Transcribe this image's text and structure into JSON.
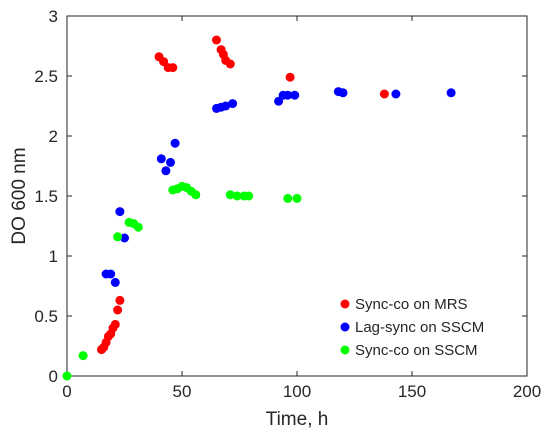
{
  "chart_data": {
    "type": "scatter",
    "xlabel": "Time, h",
    "ylabel": "DO 600 nm",
    "xlim": [
      0,
      200
    ],
    "ylim": [
      0,
      3
    ],
    "xticks": [
      0,
      50,
      100,
      150,
      200
    ],
    "yticks": [
      0,
      0.5,
      1,
      1.5,
      2,
      2.5,
      3
    ],
    "xtick_labels": [
      "0",
      "50",
      "100",
      "150",
      "200"
    ],
    "ytick_labels": [
      "0",
      "0.5",
      "1",
      "1.5",
      "2",
      "2.5",
      "3"
    ],
    "grid": false,
    "legend_position": "bottom-right",
    "series": [
      {
        "name": "Sync-co on MRS",
        "color": "#ff0000",
        "points": [
          [
            15,
            0.22
          ],
          [
            16,
            0.24
          ],
          [
            17,
            0.28
          ],
          [
            18,
            0.33
          ],
          [
            19,
            0.35
          ],
          [
            20,
            0.4
          ],
          [
            21,
            0.43
          ],
          [
            22,
            0.55
          ],
          [
            23,
            0.63
          ],
          [
            40,
            2.66
          ],
          [
            42,
            2.62
          ],
          [
            44,
            2.57
          ],
          [
            46,
            2.57
          ],
          [
            65,
            2.8
          ],
          [
            67,
            2.72
          ],
          [
            68,
            2.68
          ],
          [
            69,
            2.63
          ],
          [
            71,
            2.6
          ],
          [
            97,
            2.49
          ],
          [
            138,
            2.35
          ]
        ]
      },
      {
        "name": "Lag-sync on SSCM",
        "color": "#0000ff",
        "points": [
          [
            17,
            0.85
          ],
          [
            19,
            0.85
          ],
          [
            21,
            0.78
          ],
          [
            23,
            1.37
          ],
          [
            25,
            1.15
          ],
          [
            41,
            1.81
          ],
          [
            43,
            1.71
          ],
          [
            45,
            1.78
          ],
          [
            47,
            1.94
          ],
          [
            65,
            2.23
          ],
          [
            67,
            2.24
          ],
          [
            69,
            2.25
          ],
          [
            72,
            2.27
          ],
          [
            92,
            2.29
          ],
          [
            94,
            2.34
          ],
          [
            96,
            2.34
          ],
          [
            99,
            2.34
          ],
          [
            118,
            2.37
          ],
          [
            120,
            2.36
          ],
          [
            143,
            2.35
          ],
          [
            167,
            2.36
          ]
        ]
      },
      {
        "name": "Sync-co on SSCM",
        "color": "#00ff00",
        "points": [
          [
            0,
            0.0
          ],
          [
            7,
            0.17
          ],
          [
            22,
            1.16
          ],
          [
            27,
            1.28
          ],
          [
            29,
            1.27
          ],
          [
            31,
            1.24
          ],
          [
            46,
            1.55
          ],
          [
            48,
            1.56
          ],
          [
            50,
            1.58
          ],
          [
            52,
            1.57
          ],
          [
            54,
            1.54
          ],
          [
            56,
            1.51
          ],
          [
            71,
            1.51
          ],
          [
            74,
            1.5
          ],
          [
            77,
            1.5
          ],
          [
            79,
            1.5
          ],
          [
            96,
            1.48
          ],
          [
            100,
            1.48
          ]
        ]
      }
    ]
  }
}
